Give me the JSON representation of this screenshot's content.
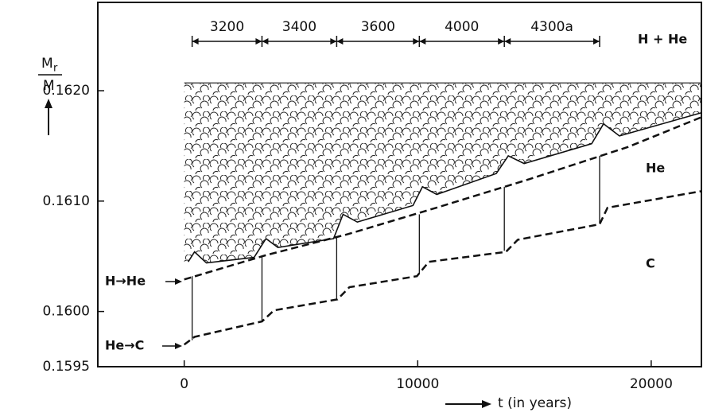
{
  "chart_data": {
    "type": "line",
    "xlim": [
      -3700,
      22150
    ],
    "ylim": [
      0.1595,
      0.1628
    ],
    "xticks": [
      0,
      10000,
      20000
    ],
    "yticks": [
      0.1595,
      {
        "value": 0.16,
        "label": "0.1600"
      },
      {
        "value": 0.161,
        "label": "0.1610"
      },
      {
        "value": 0.162,
        "label": "0.1620"
      }
    ],
    "xlabel": "t (in years)",
    "ylabel": {
      "numerator": "M",
      "subscript": "r",
      "denominator": "M"
    },
    "series": [
      {
        "color": "#111111",
        "dashed": true,
        "x": [
          0,
          3500,
          7000,
          10800,
          14800,
          19000,
          22150
        ],
        "values": [
          0.16029,
          0.16051,
          0.1607,
          0.16094,
          0.1612,
          0.16149,
          0.16176
        ]
      },
      {
        "color": "#111111",
        "dashed": true,
        "x": [
          0,
          442,
          3333,
          3844,
          6565,
          7075,
          9966,
          10476,
          13776,
          14286,
          17789,
          18129,
          22150
        ],
        "values": [
          0.1597,
          0.15977,
          0.15991,
          0.16001,
          0.16011,
          0.16022,
          0.16032,
          0.16045,
          0.16054,
          0.16065,
          0.16079,
          0.16094,
          0.16109
        ]
      },
      {
        "color": "#111111",
        "dashed": false,
        "x": [
          170,
          442,
          952,
          2993,
          3503,
          4014,
          6395,
          6803,
          7415,
          9796,
          10204,
          10816,
          13367,
          13878,
          14558,
          17449,
          17959,
          18639,
          22150
        ],
        "values": [
          0.16045,
          0.16054,
          0.16044,
          0.16049,
          0.16066,
          0.16058,
          0.16066,
          0.16088,
          0.16081,
          0.16096,
          0.16113,
          0.16106,
          0.16125,
          0.16141,
          0.16134,
          0.16152,
          0.1617,
          0.16159,
          0.1618
        ]
      },
      {
        "color": "#555555",
        "dashed": false,
        "x": [
          0,
          22150
        ],
        "values": [
          0.16207,
          0.16207
        ]
      }
    ],
    "pulses": {
      "x": [
        340,
        3330,
        6530,
        10070,
        13710,
        17790
      ],
      "y1": [
        0.15974,
        0.15991,
        0.16011,
        0.16034,
        0.16055,
        0.1608
      ],
      "y2": [
        0.16032,
        0.1605,
        0.16068,
        0.16088,
        0.16113,
        0.16141
      ]
    },
    "intervals": {
      "bounds": [
        340,
        3330,
        6530,
        10070,
        13710,
        17790
      ],
      "labels": [
        "3200",
        "3400",
        "3600",
        "4000",
        "4300a"
      ]
    },
    "annotations": [
      "H + He",
      "He",
      "C",
      "H→He",
      "He→C"
    ]
  }
}
